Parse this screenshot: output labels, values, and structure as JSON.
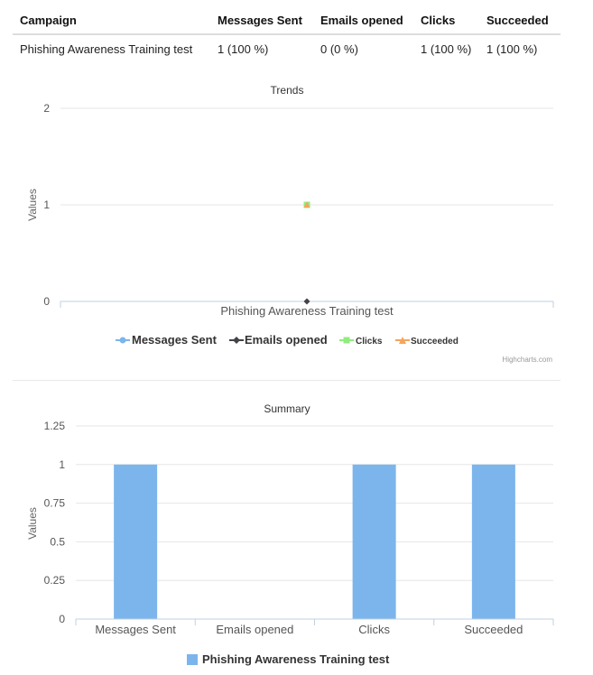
{
  "table": {
    "headers": [
      "Campaign",
      "Messages Sent",
      "Emails opened",
      "Clicks",
      "Succeeded"
    ],
    "rows": [
      [
        "Phishing Awareness Training test",
        "1 (100 %)",
        "0 (0 %)",
        "1 (100 %)",
        "1 (100 %)"
      ]
    ]
  },
  "chart_data": [
    {
      "type": "line",
      "title": "Trends",
      "ylabel": "Values",
      "categories": [
        "Phishing Awareness Training test"
      ],
      "ylim": [
        0,
        2
      ],
      "yticks": [
        "0",
        "1",
        "2"
      ],
      "series": [
        {
          "name": "Messages Sent",
          "values": [
            1
          ],
          "color": "#7cb5ec",
          "marker": "circle"
        },
        {
          "name": "Emails opened",
          "values": [
            0
          ],
          "color": "#434348",
          "marker": "diamond"
        },
        {
          "name": "Clicks",
          "values": [
            1
          ],
          "color": "#90ed7d",
          "marker": "square"
        },
        {
          "name": "Succeeded",
          "values": [
            1
          ],
          "color": "#f7a35c",
          "marker": "triangle"
        }
      ],
      "grid": true,
      "legend": "bottom-center",
      "credits": "Highcharts.com"
    },
    {
      "type": "bar",
      "title": "Summary",
      "ylabel": "Values",
      "categories": [
        "Messages Sent",
        "Emails opened",
        "Clicks",
        "Succeeded"
      ],
      "ylim": [
        0,
        1.25
      ],
      "yticks": [
        "0",
        "0.25",
        "0.5",
        "0.75",
        "1",
        "1.25"
      ],
      "series": [
        {
          "name": "Phishing Awareness Training test",
          "values": [
            1,
            0,
            1,
            1
          ],
          "color": "#7cb5ec"
        }
      ],
      "grid": true,
      "legend": "bottom-center"
    }
  ]
}
